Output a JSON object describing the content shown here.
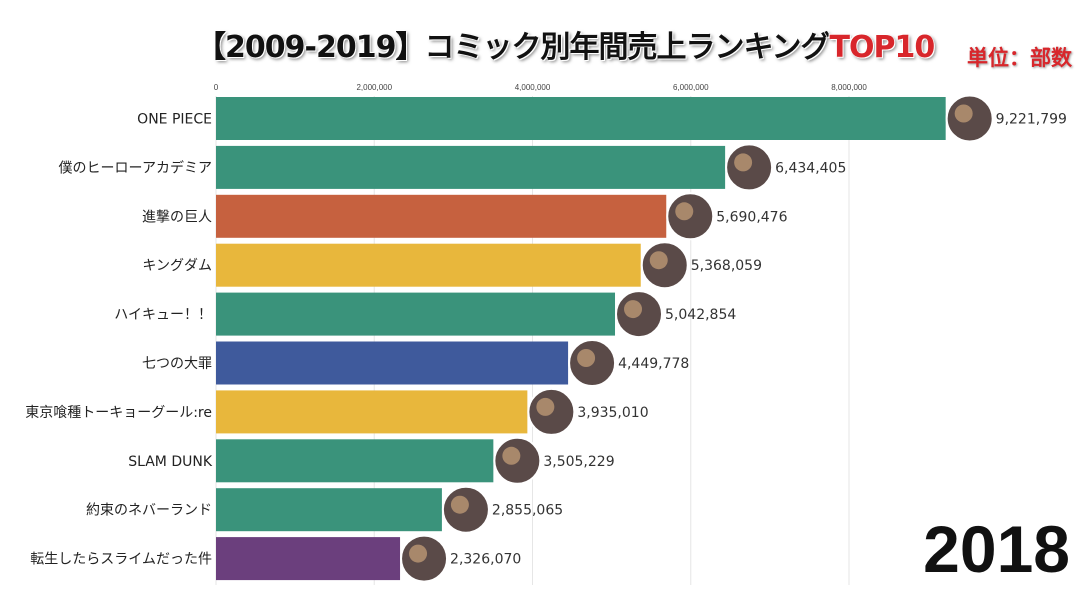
{
  "chart_data": {
    "type": "bar",
    "orientation": "horizontal",
    "title": "【2009-2019】コミック別年間売上ランキング",
    "title_highlight": "TOP10",
    "unit_label": "単位：部数",
    "period_label": "2018",
    "xlim": [
      0,
      9500000
    ],
    "xticks": [
      "0",
      "2,000,000",
      "4,000,000",
      "6,000,000",
      "8,000,000"
    ],
    "xtick_values": [
      0,
      2000000,
      4000000,
      6000000,
      8000000
    ],
    "grid": true,
    "categories": [
      "ONE PIECE",
      "僕のヒーローアカデミア",
      "進撃の巨人",
      "キングダム",
      "ハイキュー！！",
      "七つの大罪",
      "東京喰種トーキョーグール:re",
      "SLAM DUNK",
      "約束のネバーランド",
      "転生したらスライムだった件"
    ],
    "values": [
      9221799,
      6434405,
      5690476,
      5368059,
      5042854,
      4449778,
      3935010,
      3505229,
      2855065,
      2326070
    ],
    "value_labels": [
      "9,221,799",
      "6,434,405",
      "5,690,476",
      "5,368,059",
      "5,042,854",
      "4,449,778",
      "3,935,010",
      "3,505,229",
      "2,855,065",
      "2,326,070"
    ],
    "colors": [
      "#3a937b",
      "#3a937b",
      "#c6613f",
      "#e8b73c",
      "#3a937b",
      "#3f5a9c",
      "#e8b73c",
      "#3a937b",
      "#3a937b",
      "#6b3f7d"
    ]
  }
}
